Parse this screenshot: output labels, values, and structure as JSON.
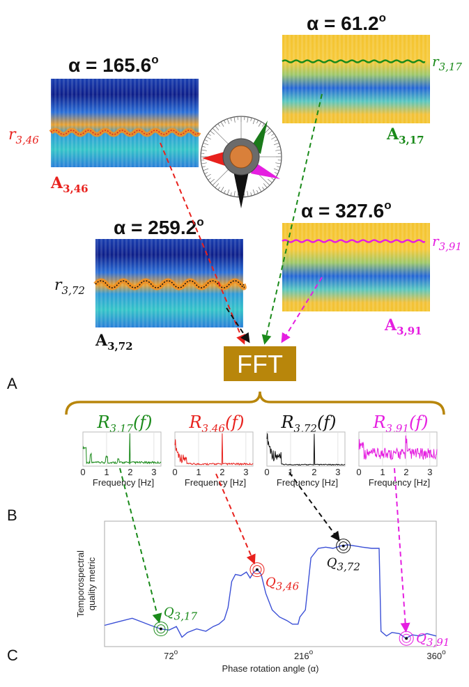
{
  "panels": {
    "a": "A",
    "b": "B",
    "c": "C"
  },
  "colors": {
    "green": "#1a8a1a",
    "red": "#e8211d",
    "black": "#111111",
    "magenta": "#e51ee0",
    "fft_box": "#b8860b",
    "curve": "#3a4fd6"
  },
  "maps": [
    {
      "id": "46",
      "alpha": "α = 165.6",
      "alpha_sup": "o",
      "r_main": "r",
      "r_sub": "3,46",
      "a_main": "A",
      "a_sub": "3,46",
      "color": "#e8211d",
      "palette": "blue"
    },
    {
      "id": "17",
      "alpha": "α = 61.2",
      "alpha_sup": "o",
      "r_main": "r",
      "r_sub": "3,17",
      "a_main": "A",
      "a_sub": "3,17",
      "color": "#1a8a1a",
      "palette": "yellow"
    },
    {
      "id": "72",
      "alpha": "α = 259.2",
      "alpha_sup": "o",
      "r_main": "r",
      "r_sub": "3,72",
      "a_main": "A",
      "a_sub": "3,72",
      "color": "#111111",
      "palette": "blue"
    },
    {
      "id": "91",
      "alpha": "α = 327.6",
      "alpha_sup": "o",
      "r_main": "r",
      "r_sub": "3,91",
      "a_main": "A",
      "a_sub": "3,91",
      "color": "#e51ee0",
      "palette": "yellow"
    }
  ],
  "fft_label": "FFT",
  "spectra": [
    {
      "id": "17",
      "title_main": "R",
      "title_sub": "3,17",
      "title_tail": "(f)",
      "color": "#1a8a1a",
      "xlabel": "Frequency [Hz]",
      "ticks": [
        "0",
        "1",
        "2",
        "3"
      ]
    },
    {
      "id": "46",
      "title_main": "R",
      "title_sub": "3,46",
      "title_tail": "(f)",
      "color": "#e8211d",
      "xlabel": "Frequency [Hz]",
      "ticks": [
        "0",
        "1",
        "2",
        "3"
      ]
    },
    {
      "id": "72",
      "title_main": "R",
      "title_sub": "3,72",
      "title_tail": "(f)",
      "color": "#111111",
      "xlabel": "Frequency [Hz]",
      "ticks": [
        "0",
        "1",
        "2",
        "3"
      ]
    },
    {
      "id": "91",
      "title_main": "R",
      "title_sub": "3,91",
      "title_tail": "(f)",
      "color": "#e51ee0",
      "xlabel": "Frequency [Hz]",
      "ticks": [
        "0",
        "1",
        "2",
        "3"
      ]
    }
  ],
  "quality_plot": {
    "ylabel_line1": "Temporospectral",
    "ylabel_line2": "quality metric",
    "xlabel": "Phase rotation angle (α)",
    "xticks": [
      {
        "label": "72",
        "sup": "o",
        "v": 72
      },
      {
        "label": "216",
        "sup": "o",
        "v": 216
      },
      {
        "label": "360",
        "sup": "o",
        "v": 360
      }
    ],
    "xlim": [
      0,
      360
    ],
    "ylim": [
      0,
      1
    ],
    "markers": [
      {
        "id": "17",
        "q_main": "Q",
        "q_sub": "3,17",
        "alpha": 61.2,
        "q": 0.12,
        "color": "#1a8a1a"
      },
      {
        "id": "46",
        "q_main": "Q",
        "q_sub": "3,46",
        "alpha": 165.6,
        "q": 0.62,
        "color": "#e8211d"
      },
      {
        "id": "72",
        "q_main": "Q",
        "q_sub": "3,72",
        "alpha": 259.2,
        "q": 0.82,
        "color": "#111111"
      },
      {
        "id": "91",
        "q_main": "Q",
        "q_sub": "3,91",
        "alpha": 327.6,
        "q": 0.04,
        "color": "#e51ee0"
      }
    ],
    "curve": [
      [
        0,
        0.15
      ],
      [
        10,
        0.17
      ],
      [
        20,
        0.19
      ],
      [
        30,
        0.21
      ],
      [
        40,
        0.18
      ],
      [
        50,
        0.15
      ],
      [
        61,
        0.12
      ],
      [
        70,
        0.11
      ],
      [
        78,
        0.14
      ],
      [
        84,
        0.05
      ],
      [
        90,
        0.09
      ],
      [
        100,
        0.12
      ],
      [
        110,
        0.1
      ],
      [
        118,
        0.14
      ],
      [
        124,
        0.16
      ],
      [
        130,
        0.2
      ],
      [
        134,
        0.3
      ],
      [
        138,
        0.52
      ],
      [
        142,
        0.58
      ],
      [
        148,
        0.57
      ],
      [
        154,
        0.6
      ],
      [
        158,
        0.55
      ],
      [
        162,
        0.6
      ],
      [
        166,
        0.62
      ],
      [
        170,
        0.58
      ],
      [
        175,
        0.42
      ],
      [
        182,
        0.28
      ],
      [
        190,
        0.22
      ],
      [
        198,
        0.19
      ],
      [
        204,
        0.16
      ],
      [
        210,
        0.16
      ],
      [
        212,
        0.22
      ],
      [
        218,
        0.28
      ],
      [
        224,
        0.72
      ],
      [
        232,
        0.8
      ],
      [
        240,
        0.81
      ],
      [
        248,
        0.8
      ],
      [
        256,
        0.82
      ],
      [
        264,
        0.83
      ],
      [
        272,
        0.82
      ],
      [
        280,
        0.81
      ],
      [
        290,
        0.8
      ],
      [
        298,
        0.8
      ],
      [
        300,
        0.1
      ],
      [
        306,
        0.06
      ],
      [
        312,
        0.09
      ],
      [
        320,
        0.08
      ],
      [
        327,
        0.04
      ],
      [
        334,
        0.07
      ],
      [
        342,
        0.06
      ],
      [
        350,
        0.08
      ],
      [
        360,
        0.06
      ]
    ]
  }
}
